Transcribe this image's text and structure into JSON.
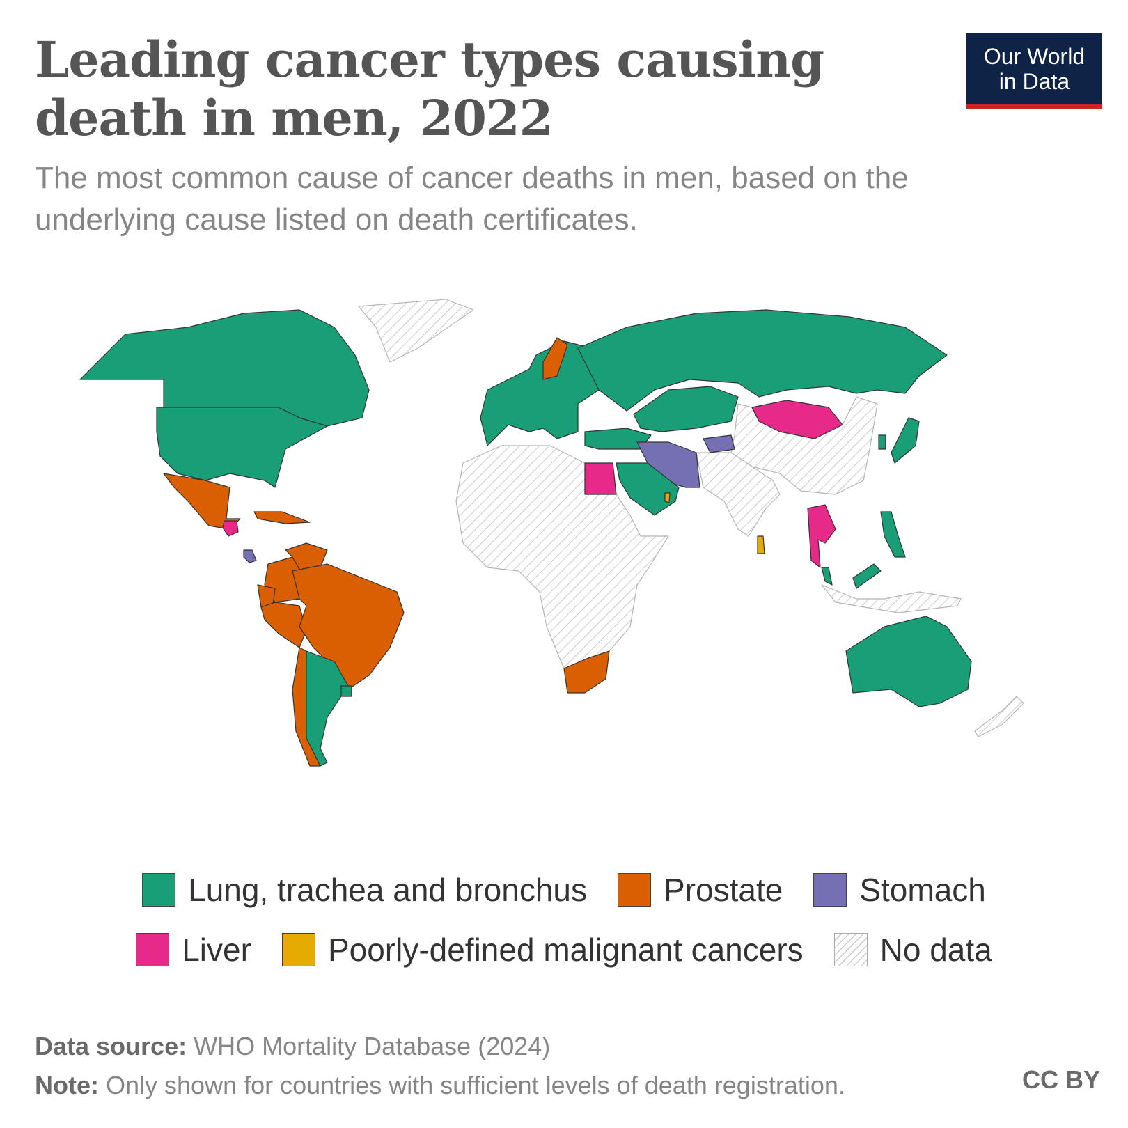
{
  "header": {
    "title": "Leading cancer types causing death in men, 2022",
    "subtitle": "The most common cause of cancer deaths in men, based on the underlying cause listed on death certificates.",
    "logo_line1": "Our World",
    "logo_line2": "in Data"
  },
  "legend": {
    "row1": [
      {
        "label": "Lung, trachea and bronchus",
        "color": "#1a9e77"
      },
      {
        "label": "Prostate",
        "color": "#d95f02"
      },
      {
        "label": "Stomach",
        "color": "#7570b3"
      }
    ],
    "row2": [
      {
        "label": "Liver",
        "color": "#e7298a"
      },
      {
        "label": "Poorly-defined malignant cancers",
        "color": "#e6ab02"
      },
      {
        "label": "No data",
        "color": "hatched"
      }
    ]
  },
  "footer": {
    "source_label": "Data source:",
    "source_text": "WHO Mortality Database (2024)",
    "note_label": "Note:",
    "note_text": "Only shown for countries with sufficient levels of death registration.",
    "license": "CC BY"
  },
  "map_data": {
    "type": "choropleth",
    "categories": [
      "Lung, trachea and bronchus",
      "Prostate",
      "Stomach",
      "Liver",
      "Poorly-defined malignant cancers",
      "No data"
    ],
    "regions": [
      {
        "name": "Canada",
        "category": "Lung, trachea and bronchus"
      },
      {
        "name": "United States",
        "category": "Lung, trachea and bronchus"
      },
      {
        "name": "Mexico",
        "category": "Prostate"
      },
      {
        "name": "Guatemala",
        "category": "Liver"
      },
      {
        "name": "Costa Rica",
        "category": "Stomach"
      },
      {
        "name": "Cuba",
        "category": "Prostate"
      },
      {
        "name": "Colombia",
        "category": "Prostate"
      },
      {
        "name": "Venezuela",
        "category": "Prostate"
      },
      {
        "name": "Ecuador",
        "category": "Prostate"
      },
      {
        "name": "Peru",
        "category": "Prostate"
      },
      {
        "name": "Brazil",
        "category": "Prostate"
      },
      {
        "name": "Chile",
        "category": "Prostate"
      },
      {
        "name": "Argentina",
        "category": "Lung, trachea and bronchus"
      },
      {
        "name": "Uruguay",
        "category": "Lung, trachea and bronchus"
      },
      {
        "name": "Greenland",
        "category": "No data"
      },
      {
        "name": "Europe",
        "category": "Lung, trachea and bronchus"
      },
      {
        "name": "Sweden",
        "category": "Prostate"
      },
      {
        "name": "Russia",
        "category": "Lung, trachea and bronchus"
      },
      {
        "name": "Kazakhstan",
        "category": "Lung, trachea and bronchus"
      },
      {
        "name": "Turkey",
        "category": "Lung, trachea and bronchus"
      },
      {
        "name": "Mongolia",
        "category": "Liver"
      },
      {
        "name": "Iran",
        "category": "Stomach"
      },
      {
        "name": "Kyrgyzstan",
        "category": "Stomach"
      },
      {
        "name": "Saudi Arabia",
        "category": "Lung, trachea and bronchus"
      },
      {
        "name": "Egypt",
        "category": "Liver"
      },
      {
        "name": "Qatar",
        "category": "Poorly-defined malignant cancers"
      },
      {
        "name": "Sri Lanka",
        "category": "Poorly-defined malignant cancers"
      },
      {
        "name": "Thailand",
        "category": "Liver"
      },
      {
        "name": "Malaysia",
        "category": "Lung, trachea and bronchus"
      },
      {
        "name": "Philippines",
        "category": "Lung, trachea and bronchus"
      },
      {
        "name": "Japan",
        "category": "Lung, trachea and bronchus"
      },
      {
        "name": "South Korea",
        "category": "Lung, trachea and bronchus"
      },
      {
        "name": "South Africa",
        "category": "Prostate"
      },
      {
        "name": "Australia",
        "category": "Lung, trachea and bronchus"
      },
      {
        "name": "Africa (most)",
        "category": "No data"
      },
      {
        "name": "China",
        "category": "No data"
      },
      {
        "name": "India",
        "category": "No data"
      },
      {
        "name": "Indonesia",
        "category": "No data"
      },
      {
        "name": "New Zealand",
        "category": "No data"
      }
    ]
  }
}
